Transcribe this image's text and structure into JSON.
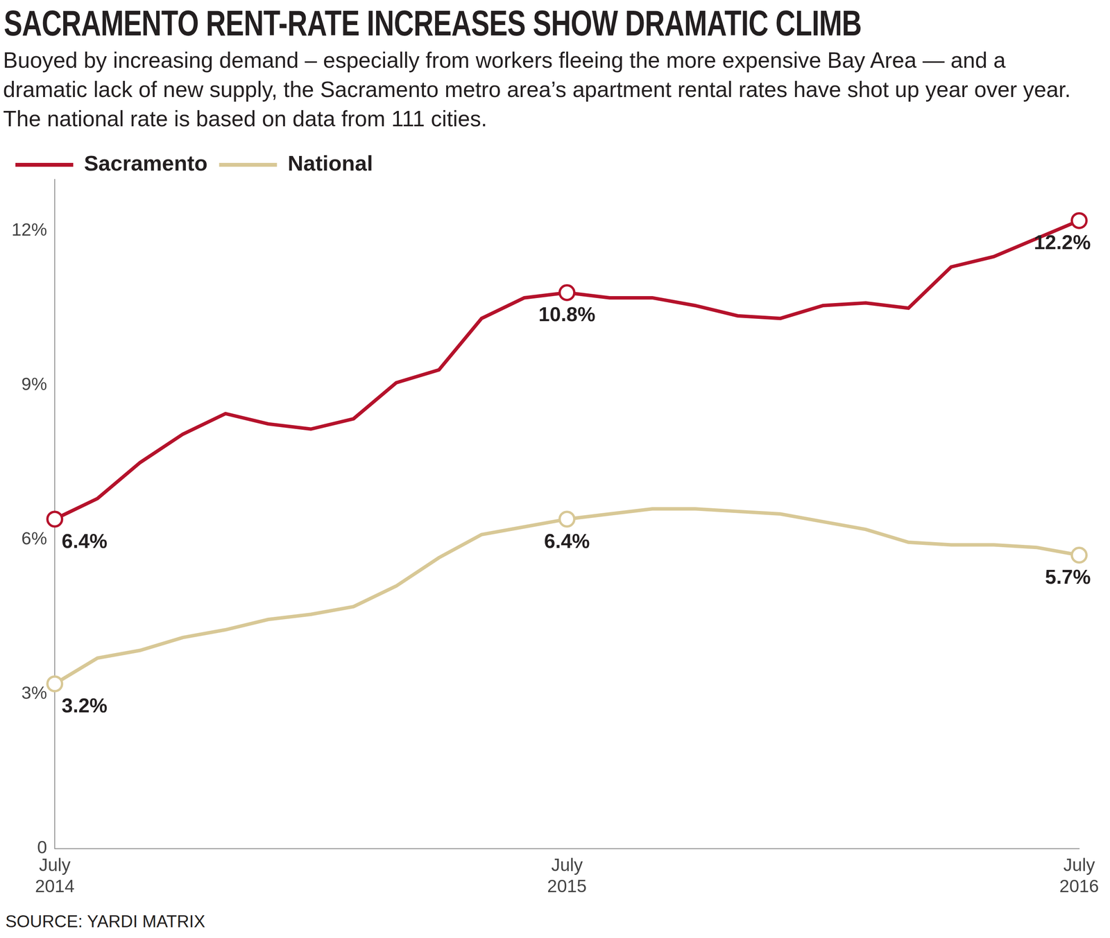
{
  "chart_data": {
    "type": "line",
    "title": "SACRAMENTO RENT-RATE INCREASES SHOW DRAMATIC CLIMB",
    "subtitle": "Buoyed by increasing demand – especially from workers fleeing the more expensive Bay Area — and a dramatic lack of new supply, the Sacramento metro area’s apartment rental rates have shot up year over year. The national rate is based on data from 111 cities.",
    "source": "SOURCE: YARDI MATRIX",
    "categories": [
      "July 2014",
      null,
      null,
      null,
      null,
      null,
      null,
      null,
      null,
      null,
      null,
      null,
      "July 2015",
      null,
      null,
      null,
      null,
      null,
      null,
      null,
      null,
      null,
      null,
      null,
      "July 2016"
    ],
    "series": [
      {
        "name": "Sacramento",
        "color": "#b5122b",
        "marker": "circle",
        "values": [
          6.4,
          6.8,
          7.5,
          8.05,
          8.45,
          8.25,
          8.15,
          8.35,
          9.05,
          9.3,
          10.3,
          10.7,
          10.8,
          10.7,
          10.7,
          10.55,
          10.35,
          10.3,
          10.55,
          10.6,
          10.5,
          11.3,
          11.5,
          11.85,
          12.2
        ],
        "value_labels": [
          "6.4%",
          null,
          null,
          null,
          null,
          null,
          null,
          null,
          null,
          null,
          null,
          null,
          "10.8%",
          null,
          null,
          null,
          null,
          null,
          null,
          null,
          null,
          null,
          null,
          null,
          "12.2%"
        ]
      },
      {
        "name": "National",
        "color": "#d8c896",
        "marker": "circle",
        "values": [
          3.2,
          3.7,
          3.85,
          4.1,
          4.25,
          4.45,
          4.55,
          4.7,
          5.1,
          5.65,
          6.1,
          6.25,
          6.4,
          6.5,
          6.6,
          6.6,
          6.55,
          6.5,
          6.35,
          6.2,
          5.95,
          5.9,
          5.9,
          5.85,
          5.7
        ],
        "value_labels": [
          "3.2%",
          null,
          null,
          null,
          null,
          null,
          null,
          null,
          null,
          null,
          null,
          null,
          "6.4%",
          null,
          null,
          null,
          null,
          null,
          null,
          null,
          null,
          null,
          null,
          null,
          "5.7%"
        ]
      }
    ],
    "ylim": [
      0,
      13
    ],
    "yticks": [
      0,
      {
        "value": 3,
        "label": "3%"
      },
      {
        "value": 6,
        "label": "6%"
      },
      {
        "value": 9,
        "label": "9%"
      },
      {
        "value": 12,
        "label": "12%"
      }
    ],
    "grid": false,
    "legend": "upper left"
  }
}
